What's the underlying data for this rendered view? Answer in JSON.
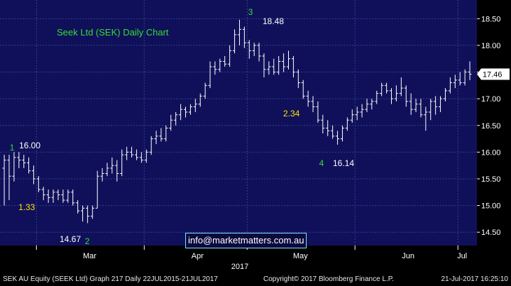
{
  "colors": {
    "plot_background": "#10105a",
    "grid": "#2f3f8a",
    "bars": "#ffffff",
    "axis_panel": "#000000",
    "green_text": "#33dd33",
    "yellow_text": "#ffe000",
    "white_text": "#ffffff",
    "price_box": "#ffffff"
  },
  "chart_data": {
    "type": "ohlc",
    "title": "Seek Ltd (SEK) Daily Chart",
    "year_label": "2017",
    "x_tick_labels": [
      "Mar",
      "Apr",
      "May",
      "Jun",
      "Jul"
    ],
    "y_tick_labels": [
      "14.50",
      "15.00",
      "15.50",
      "16.00",
      "16.50",
      "17.00",
      "17.50",
      "18.00",
      "18.50"
    ],
    "y_ticks": [
      14.5,
      15.0,
      15.5,
      16.0,
      16.5,
      17.0,
      17.5,
      18.0,
      18.5
    ],
    "ylim": [
      14.25,
      18.85
    ],
    "last_price_label": "17.46",
    "last_price": 17.46,
    "wave_labels": [
      {
        "text": "1",
        "price": 16.0,
        "color": "green"
      },
      {
        "text": "2",
        "price": 14.67,
        "color": "green"
      },
      {
        "text": "3",
        "price": 18.48,
        "color": "green"
      },
      {
        "text": "4",
        "price": 16.14,
        "color": "green"
      }
    ],
    "price_labels": [
      {
        "text": "16.00",
        "price": 16.0
      },
      {
        "text": "14.67",
        "price": 14.67
      },
      {
        "text": "18.48",
        "price": 18.48
      },
      {
        "text": "16.14",
        "price": 16.14
      }
    ],
    "move_labels": [
      {
        "text": "1.33",
        "color": "yellow"
      },
      {
        "text": "2.34",
        "color": "yellow"
      }
    ],
    "ohlc": [
      [
        15.7,
        15.95,
        15.0,
        15.85
      ],
      [
        15.85,
        15.95,
        15.1,
        15.55
      ],
      [
        15.55,
        16.0,
        15.45,
        15.9
      ],
      [
        15.9,
        16.0,
        15.7,
        15.85
      ],
      [
        15.85,
        15.95,
        15.7,
        15.8
      ],
      [
        15.8,
        15.9,
        15.6,
        15.65
      ],
      [
        15.65,
        15.75,
        15.4,
        15.5
      ],
      [
        15.5,
        15.55,
        15.25,
        15.3
      ],
      [
        15.3,
        15.35,
        15.1,
        15.2
      ],
      [
        15.2,
        15.3,
        15.05,
        15.15
      ],
      [
        15.15,
        15.3,
        15.05,
        15.25
      ],
      [
        15.25,
        15.3,
        15.1,
        15.2
      ],
      [
        15.2,
        15.3,
        15.05,
        15.1
      ],
      [
        15.1,
        15.3,
        15.05,
        15.25
      ],
      [
        15.25,
        15.3,
        15.0,
        15.05
      ],
      [
        15.05,
        15.1,
        14.85,
        14.9
      ],
      [
        14.9,
        15.0,
        14.7,
        14.95
      ],
      [
        14.95,
        15.0,
        14.67,
        14.8
      ],
      [
        14.8,
        15.0,
        14.75,
        14.95
      ],
      [
        14.95,
        15.65,
        14.95,
        15.55
      ],
      [
        15.55,
        15.7,
        15.45,
        15.6
      ],
      [
        15.6,
        15.8,
        15.55,
        15.7
      ],
      [
        15.7,
        15.9,
        15.6,
        15.75
      ],
      [
        15.75,
        15.85,
        15.45,
        15.6
      ],
      [
        15.6,
        16.05,
        15.55,
        15.95
      ],
      [
        15.95,
        16.1,
        15.85,
        16.0
      ],
      [
        16.0,
        16.1,
        15.9,
        15.95
      ],
      [
        15.95,
        16.05,
        15.85,
        15.9
      ],
      [
        15.9,
        16.0,
        15.8,
        15.85
      ],
      [
        15.85,
        16.05,
        15.8,
        16.0
      ],
      [
        16.0,
        16.3,
        15.95,
        16.25
      ],
      [
        16.25,
        16.4,
        16.15,
        16.3
      ],
      [
        16.3,
        16.45,
        16.2,
        16.25
      ],
      [
        16.25,
        16.5,
        16.2,
        16.45
      ],
      [
        16.45,
        16.7,
        16.4,
        16.6
      ],
      [
        16.6,
        16.75,
        16.5,
        16.7
      ],
      [
        16.7,
        16.9,
        16.6,
        16.8
      ],
      [
        16.8,
        16.85,
        16.65,
        16.75
      ],
      [
        16.75,
        16.9,
        16.7,
        16.85
      ],
      [
        16.85,
        17.0,
        16.75,
        16.9
      ],
      [
        16.9,
        17.1,
        16.85,
        17.05
      ],
      [
        17.05,
        17.3,
        17.0,
        17.25
      ],
      [
        17.25,
        17.7,
        17.2,
        17.6
      ],
      [
        17.6,
        17.7,
        17.45,
        17.55
      ],
      [
        17.55,
        17.75,
        17.5,
        17.7
      ],
      [
        17.7,
        17.8,
        17.6,
        17.65
      ],
      [
        17.65,
        18.0,
        17.6,
        17.9
      ],
      [
        17.9,
        18.3,
        17.85,
        18.2
      ],
      [
        18.2,
        18.48,
        18.0,
        18.3
      ],
      [
        18.3,
        18.35,
        17.95,
        18.05
      ],
      [
        18.05,
        18.1,
        17.75,
        17.9
      ],
      [
        17.9,
        18.05,
        17.8,
        18.0
      ],
      [
        18.0,
        18.05,
        17.7,
        17.8
      ],
      [
        17.8,
        17.85,
        17.4,
        17.55
      ],
      [
        17.55,
        17.7,
        17.45,
        17.6
      ],
      [
        17.6,
        17.75,
        17.45,
        17.5
      ],
      [
        17.5,
        17.8,
        17.45,
        17.7
      ],
      [
        17.7,
        17.85,
        17.5,
        17.6
      ],
      [
        17.6,
        17.9,
        17.55,
        17.75
      ],
      [
        17.75,
        17.8,
        17.4,
        17.5
      ],
      [
        17.5,
        17.55,
        17.2,
        17.3
      ],
      [
        17.3,
        17.35,
        17.0,
        17.05
      ],
      [
        17.05,
        17.15,
        16.85,
        16.95
      ],
      [
        16.95,
        17.05,
        16.75,
        16.85
      ],
      [
        16.85,
        16.95,
        16.55,
        16.6
      ],
      [
        16.6,
        16.7,
        16.35,
        16.45
      ],
      [
        16.45,
        16.6,
        16.3,
        16.4
      ],
      [
        16.4,
        16.5,
        16.25,
        16.3
      ],
      [
        16.3,
        16.4,
        16.14,
        16.25
      ],
      [
        16.25,
        16.5,
        16.2,
        16.45
      ],
      [
        16.45,
        16.65,
        16.4,
        16.6
      ],
      [
        16.6,
        16.8,
        16.55,
        16.7
      ],
      [
        16.7,
        16.85,
        16.6,
        16.75
      ],
      [
        16.75,
        16.9,
        16.65,
        16.8
      ],
      [
        16.8,
        17.0,
        16.75,
        16.9
      ],
      [
        16.9,
        17.0,
        16.8,
        16.95
      ],
      [
        16.95,
        17.15,
        16.9,
        17.1
      ],
      [
        17.1,
        17.3,
        17.05,
        17.25
      ],
      [
        17.25,
        17.3,
        17.1,
        17.15
      ],
      [
        17.15,
        17.2,
        16.9,
        17.0
      ],
      [
        17.0,
        17.25,
        16.95,
        17.1
      ],
      [
        17.1,
        17.4,
        17.05,
        17.2
      ],
      [
        17.2,
        17.25,
        16.85,
        16.95
      ],
      [
        16.95,
        17.1,
        16.7,
        16.8
      ],
      [
        16.8,
        17.0,
        16.75,
        16.9
      ],
      [
        16.9,
        17.0,
        16.65,
        16.7
      ],
      [
        16.7,
        16.85,
        16.4,
        16.75
      ],
      [
        16.75,
        17.0,
        16.6,
        16.95
      ],
      [
        16.95,
        17.05,
        16.7,
        16.85
      ],
      [
        16.85,
        17.05,
        16.75,
        17.0
      ],
      [
        17.0,
        17.2,
        16.95,
        17.15
      ],
      [
        17.15,
        17.4,
        17.1,
        17.3
      ],
      [
        17.3,
        17.45,
        17.2,
        17.35
      ],
      [
        17.35,
        17.5,
        17.25,
        17.3
      ],
      [
        17.3,
        17.55,
        17.25,
        17.5
      ],
      [
        17.5,
        17.7,
        17.35,
        17.46
      ]
    ]
  },
  "watermark": "info@marketmatters.com.au",
  "footer": {
    "left": "SEK AU Equity (SEEK Ltd) Graph 217  Daily 22JUL2015-21JUL2017",
    "center": "Copyright© 2017 Bloomberg Finance L.P.",
    "right": "21-Jul-2017  16:25:10"
  }
}
